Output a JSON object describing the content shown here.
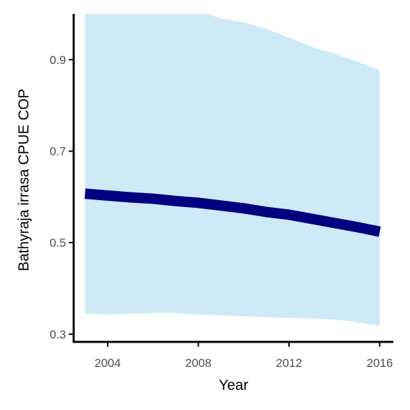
{
  "chart_data": {
    "type": "line",
    "xlabel": "Year",
    "ylabel": "Bathyraja irrasa  CPUE COP",
    "xlim": [
      2002.5,
      2016.6
    ],
    "ylim": [
      0.283,
      1.0
    ],
    "x_ticks": [
      2004,
      2008,
      2012,
      2016
    ],
    "x_tick_labels": [
      "2004",
      "2008",
      "2012",
      "2016"
    ],
    "y_ticks": [
      0.3,
      0.5,
      0.7,
      0.9
    ],
    "y_tick_labels": [
      "0.3",
      "0.5",
      "0.7",
      "0.9"
    ],
    "grid": false,
    "legend": "none",
    "series": [
      {
        "x": [
          2003,
          2004,
          2005,
          2006,
          2007,
          2008,
          2009,
          2010,
          2011,
          2012,
          2013,
          2014,
          2015,
          2016
        ],
        "y": [
          0.607,
          0.603,
          0.599,
          0.596,
          0.591,
          0.587,
          0.581,
          0.575,
          0.567,
          0.561,
          0.552,
          0.543,
          0.534,
          0.524
        ],
        "lower": [
          0.345,
          0.343,
          0.345,
          0.346,
          0.346,
          0.343,
          0.341,
          0.339,
          0.337,
          0.336,
          0.334,
          0.332,
          0.326,
          0.318
        ],
        "upper": [
          1.057,
          1.052,
          1.035,
          1.031,
          1.007,
          1.007,
          0.99,
          0.982,
          0.967,
          0.948,
          0.928,
          0.913,
          0.896,
          0.877
        ]
      }
    ],
    "colors": {
      "line": "#000080",
      "ribbon": "#ceeaf6",
      "axis": "#000000",
      "tick_label": "#4d4d4d",
      "axis_title": "#000000"
    }
  }
}
